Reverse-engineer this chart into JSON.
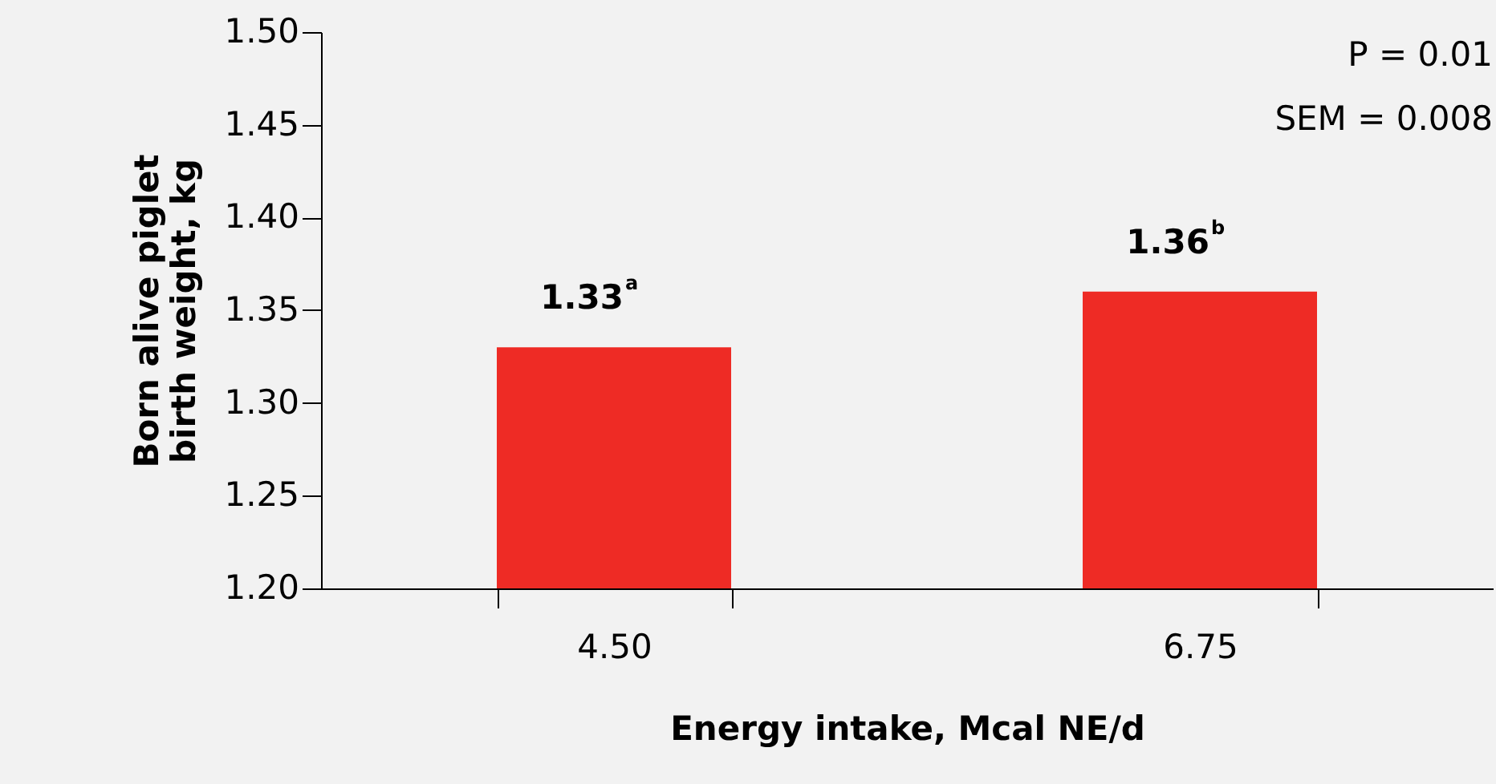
{
  "chart_data": {
    "type": "bar",
    "xlabel": "Energy intake, Mcal NE/d",
    "ylabel": "Born alive piglet\nbirth weight, kg",
    "categories": [
      "4.50",
      "6.75"
    ],
    "values": [
      1.33,
      1.36
    ],
    "value_labels": [
      "1.33$^{a}$",
      "1.36$^{b}$"
    ],
    "color": "#ee2b25",
    "ylim": [
      1.2,
      1.5
    ],
    "yticks": [
      {
        "value": 1.2,
        "label": "1.20"
      },
      1.25,
      {
        "value": 1.3,
        "label": "1.30"
      },
      1.35,
      {
        "value": 1.4,
        "label": "1.40"
      },
      1.45,
      {
        "value": 1.5,
        "label": "1.50"
      }
    ],
    "annotations": [
      "P = 0.01",
      "SEM = 0.008"
    ]
  }
}
